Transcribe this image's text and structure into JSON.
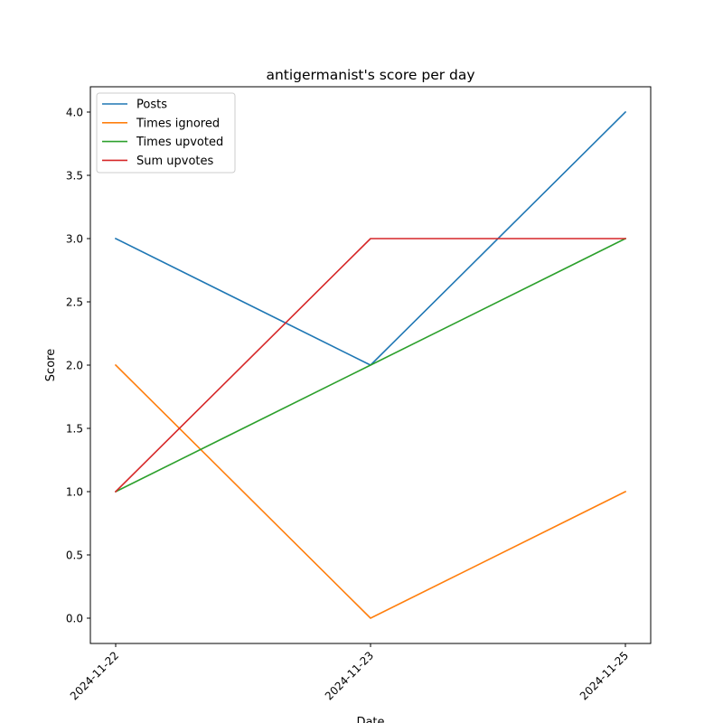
{
  "chart_data": {
    "type": "line",
    "title": "antigermanist's score per day",
    "xlabel": "Date",
    "ylabel": "Score",
    "categories": [
      "2024-11-22",
      "2024-11-23",
      "2024-11-25"
    ],
    "ylim": [
      -0.2,
      4.2
    ],
    "yticks": [
      0.0,
      0.5,
      1.0,
      1.5,
      2.0,
      2.5,
      3.0,
      3.5,
      4.0
    ],
    "ytick_labels": [
      "0.0",
      "0.5",
      "1.0",
      "1.5",
      "2.0",
      "2.5",
      "3.0",
      "3.5",
      "4.0"
    ],
    "grid": false,
    "legend_position": "top-left",
    "series": [
      {
        "name": "Posts",
        "color": "#1f77b4",
        "values": [
          3,
          2,
          4
        ]
      },
      {
        "name": "Times ignored",
        "color": "#ff7f0e",
        "values": [
          2,
          0,
          1
        ]
      },
      {
        "name": "Times upvoted",
        "color": "#2ca02c",
        "values": [
          1,
          2,
          3
        ]
      },
      {
        "name": "Sum upvotes",
        "color": "#d62728",
        "values": [
          1,
          3,
          3
        ]
      }
    ]
  }
}
